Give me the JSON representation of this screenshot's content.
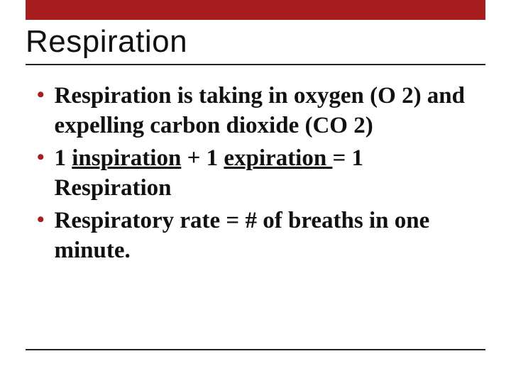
{
  "slide": {
    "accent_color": "#a81e1e",
    "border_color": "#222222",
    "background_color": "#ffffff",
    "title": "Respiration",
    "title_font": "Impact",
    "title_fontsize": 44,
    "body_font": "Georgia",
    "body_fontsize": 33,
    "body_fontweight": "bold",
    "bullets": [
      {
        "segments": [
          {
            "text": "Respiration is taking in oxygen (O 2) and expelling carbon dioxide (CO 2)",
            "underline": false
          }
        ]
      },
      {
        "segments": [
          {
            "text": "1 ",
            "underline": false
          },
          {
            "text": "inspiration",
            "underline": true
          },
          {
            "text": " + 1 ",
            "underline": false
          },
          {
            "text": "expiration ",
            "underline": true
          },
          {
            "text": " = 1 Respiration",
            "underline": false
          }
        ]
      },
      {
        "segments": [
          {
            "text": "Respiratory rate = # of breaths in one minute.",
            "underline": false
          }
        ]
      }
    ]
  }
}
